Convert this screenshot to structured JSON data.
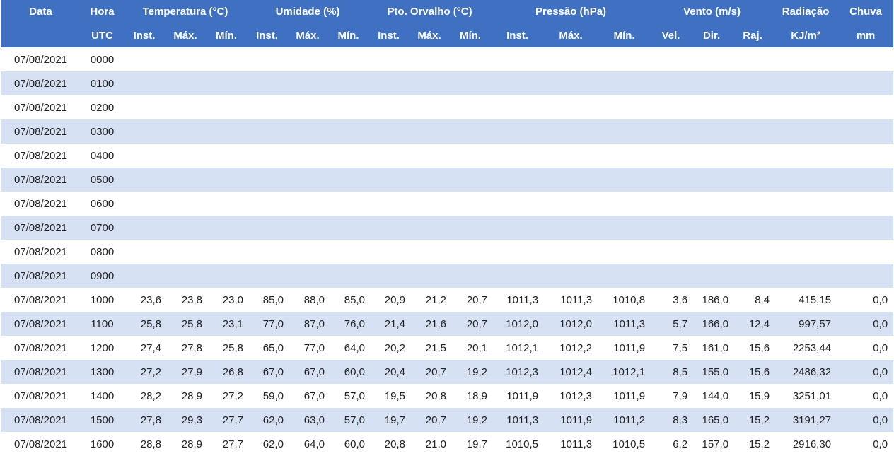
{
  "header": {
    "groups": [
      "Data",
      "Hora",
      "Temperatura (°C)",
      "Umidade (%)",
      "Pto. Orvalho (°C)",
      "Pressão (hPa)",
      "Vento (m/s)",
      "Radiação",
      "Chuva"
    ],
    "sub": [
      "UTC",
      "Inst.",
      "Máx.",
      "Mín.",
      "Inst.",
      "Máx.",
      "Mín.",
      "Inst.",
      "Máx.",
      "Mín.",
      "Inst.",
      "Máx.",
      "Mín.",
      "Vel.",
      "Dir.",
      "Raj.",
      "KJ/m²",
      "mm"
    ]
  },
  "rows": [
    [
      "07/08/2021",
      "0000",
      "",
      "",
      "",
      "",
      "",
      "",
      "",
      "",
      "",
      "",
      "",
      "",
      "",
      "",
      "",
      "",
      ""
    ],
    [
      "07/08/2021",
      "0100",
      "",
      "",
      "",
      "",
      "",
      "",
      "",
      "",
      "",
      "",
      "",
      "",
      "",
      "",
      "",
      "",
      ""
    ],
    [
      "07/08/2021",
      "0200",
      "",
      "",
      "",
      "",
      "",
      "",
      "",
      "",
      "",
      "",
      "",
      "",
      "",
      "",
      "",
      "",
      ""
    ],
    [
      "07/08/2021",
      "0300",
      "",
      "",
      "",
      "",
      "",
      "",
      "",
      "",
      "",
      "",
      "",
      "",
      "",
      "",
      "",
      "",
      ""
    ],
    [
      "07/08/2021",
      "0400",
      "",
      "",
      "",
      "",
      "",
      "",
      "",
      "",
      "",
      "",
      "",
      "",
      "",
      "",
      "",
      "",
      ""
    ],
    [
      "07/08/2021",
      "0500",
      "",
      "",
      "",
      "",
      "",
      "",
      "",
      "",
      "",
      "",
      "",
      "",
      "",
      "",
      "",
      "",
      ""
    ],
    [
      "07/08/2021",
      "0600",
      "",
      "",
      "",
      "",
      "",
      "",
      "",
      "",
      "",
      "",
      "",
      "",
      "",
      "",
      "",
      "",
      ""
    ],
    [
      "07/08/2021",
      "0700",
      "",
      "",
      "",
      "",
      "",
      "",
      "",
      "",
      "",
      "",
      "",
      "",
      "",
      "",
      "",
      "",
      ""
    ],
    [
      "07/08/2021",
      "0800",
      "",
      "",
      "",
      "",
      "",
      "",
      "",
      "",
      "",
      "",
      "",
      "",
      "",
      "",
      "",
      "",
      ""
    ],
    [
      "07/08/2021",
      "0900",
      "",
      "",
      "",
      "",
      "",
      "",
      "",
      "",
      "",
      "",
      "",
      "",
      "",
      "",
      "",
      "",
      ""
    ],
    [
      "07/08/2021",
      "1000",
      "23,6",
      "23,8",
      "23,0",
      "85,0",
      "88,0",
      "85,0",
      "20,9",
      "21,2",
      "20,7",
      "1011,3",
      "1011,3",
      "1010,8",
      "3,6",
      "186,0",
      "8,4",
      "415,15",
      "0,0"
    ],
    [
      "07/08/2021",
      "1100",
      "25,8",
      "25,8",
      "23,1",
      "77,0",
      "87,0",
      "76,0",
      "21,4",
      "21,6",
      "20,7",
      "1012,0",
      "1012,0",
      "1011,3",
      "5,7",
      "166,0",
      "12,4",
      "997,57",
      "0,0"
    ],
    [
      "07/08/2021",
      "1200",
      "27,4",
      "27,8",
      "25,8",
      "65,0",
      "77,0",
      "64,0",
      "20,2",
      "21,5",
      "20,1",
      "1012,1",
      "1012,2",
      "1011,9",
      "7,5",
      "161,0",
      "15,6",
      "2253,44",
      "0,0"
    ],
    [
      "07/08/2021",
      "1300",
      "27,2",
      "27,9",
      "26,8",
      "67,0",
      "67,0",
      "60,0",
      "20,4",
      "20,7",
      "19,2",
      "1012,3",
      "1012,4",
      "1012,1",
      "8,5",
      "155,0",
      "15,6",
      "2486,32",
      "0,0"
    ],
    [
      "07/08/2021",
      "1400",
      "28,2",
      "28,9",
      "27,2",
      "59,0",
      "67,0",
      "57,0",
      "19,5",
      "20,8",
      "18,9",
      "1011,9",
      "1012,3",
      "1011,9",
      "7,9",
      "144,0",
      "15,9",
      "3251,01",
      "0,0"
    ],
    [
      "07/08/2021",
      "1500",
      "27,8",
      "29,3",
      "27,7",
      "62,0",
      "63,0",
      "57,0",
      "19,7",
      "20,7",
      "19,2",
      "1011,3",
      "1011,9",
      "1011,2",
      "8,3",
      "165,0",
      "15,2",
      "3191,27",
      "0,0"
    ],
    [
      "07/08/2021",
      "1600",
      "28,8",
      "28,9",
      "27,7",
      "62,0",
      "64,0",
      "60,0",
      "20,8",
      "21,0",
      "19,7",
      "1010,5",
      "1011,3",
      "1010,5",
      "6,2",
      "157,0",
      "15,2",
      "2916,30",
      "0,0"
    ]
  ]
}
